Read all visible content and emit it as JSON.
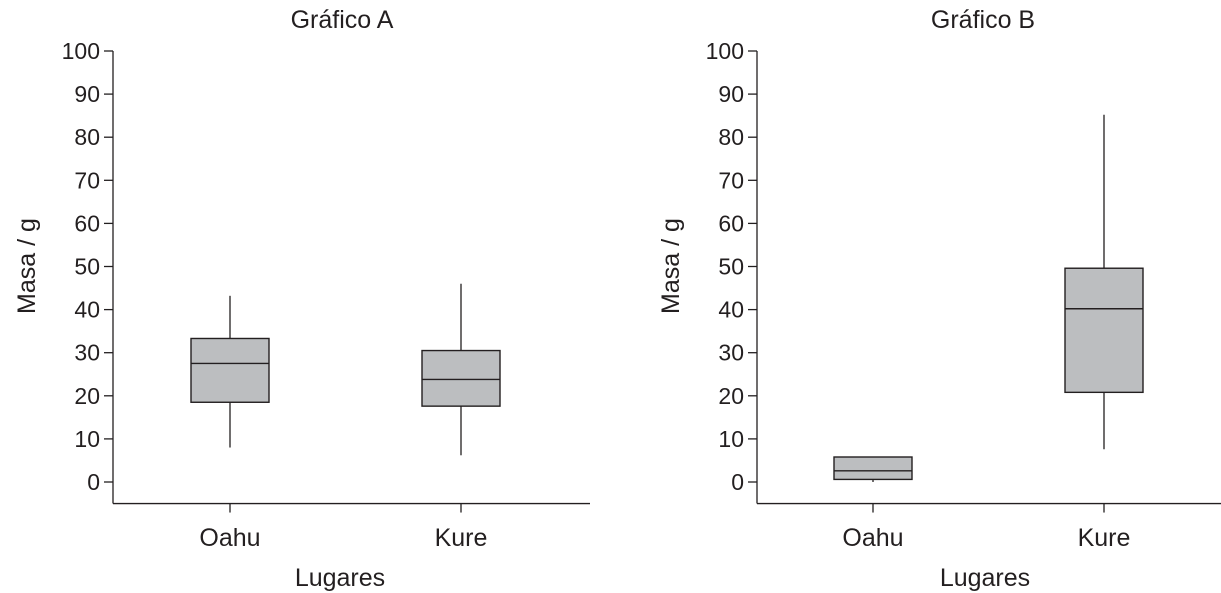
{
  "chart_data": [
    {
      "type": "boxplot",
      "title": "Gráfico A",
      "xlabel": "Lugares",
      "ylabel": "Masa / g",
      "ylim": [
        -5,
        100
      ],
      "yticks": [
        0,
        10,
        20,
        30,
        40,
        50,
        60,
        70,
        80,
        90,
        100
      ],
      "categories": [
        "Oahu",
        "Kure"
      ],
      "boxes": [
        {
          "category": "Oahu",
          "min": 8,
          "q1": 18.5,
          "median": 27.5,
          "q3": 33.3,
          "max": 43.2
        },
        {
          "category": "Kure",
          "min": 6.2,
          "q1": 17.6,
          "median": 23.8,
          "q3": 30.5,
          "max": 46
        }
      ],
      "box_color": "#bcbec0",
      "line_color": "#231f20"
    },
    {
      "type": "boxplot",
      "title": "Gráfico B",
      "xlabel": "Lugares",
      "ylabel": "Masa / g",
      "ylim": [
        -5,
        100
      ],
      "yticks": [
        0,
        10,
        20,
        30,
        40,
        50,
        60,
        70,
        80,
        90,
        100
      ],
      "categories": [
        "Oahu",
        "Kure"
      ],
      "boxes": [
        {
          "category": "Oahu",
          "min": 0,
          "q1": 0.6,
          "median": 2.6,
          "q3": 5.8,
          "max": 5.8
        },
        {
          "category": "Kure",
          "min": 7.6,
          "q1": 20.8,
          "median": 40.2,
          "q3": 49.6,
          "max": 85.2
        }
      ],
      "box_color": "#bcbec0",
      "line_color": "#231f20"
    }
  ]
}
